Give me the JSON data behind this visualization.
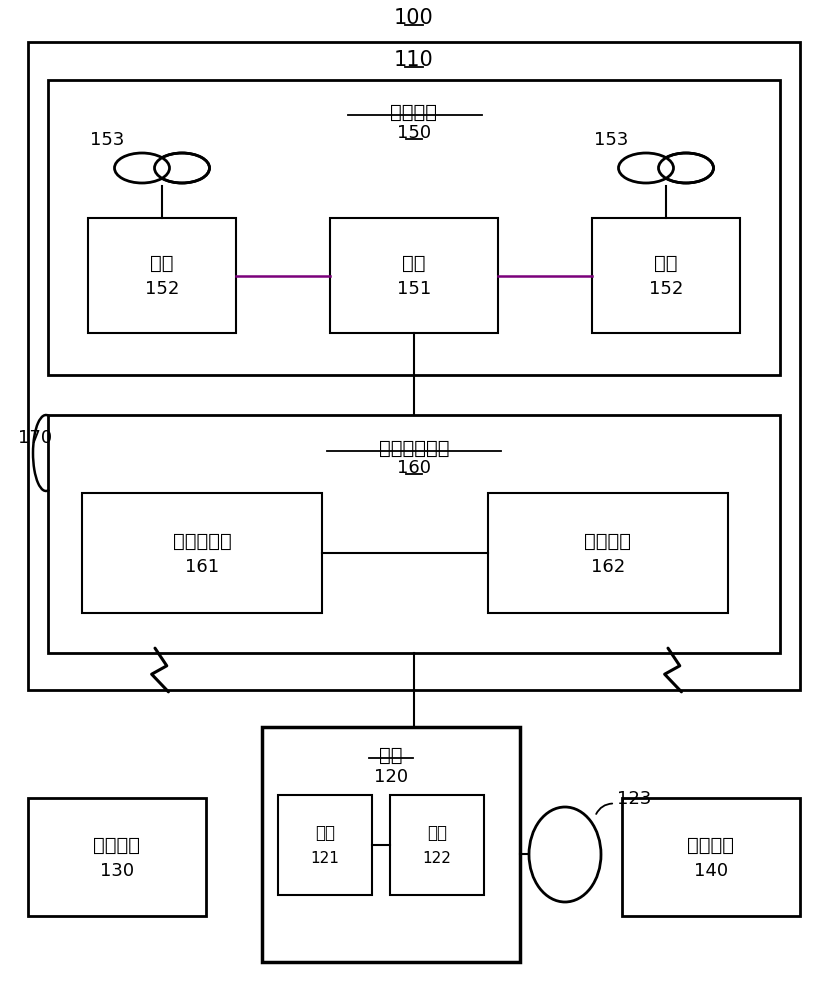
{
  "title_100": "100",
  "title_110": "110",
  "title_150": "150",
  "label_150": "动力系统",
  "title_160": "160",
  "label_160": "飞行控制系统",
  "label_151": "电调",
  "num_151": "151",
  "label_152_l": "电机",
  "num_152_l": "152",
  "label_152_r": "电机",
  "num_152_r": "152",
  "num_153_l": "153",
  "num_153_r": "153",
  "label_161": "飞行控制器",
  "num_161": "161",
  "label_162": "传感系统",
  "num_162": "162",
  "label_120": "云台",
  "num_120": "120",
  "label_121": "电调",
  "num_121": "121",
  "label_122": "电机",
  "num_122": "122",
  "num_123": "123",
  "label_130": "显示设备",
  "num_130": "130",
  "label_140": "操纵设备",
  "num_140": "140",
  "num_170": "170",
  "bg_color": "#ffffff",
  "box_color": "#000000",
  "line_color": "#000000",
  "purple_line": "#7B007B",
  "font_size_label": 14,
  "font_size_num": 13,
  "font_size_title": 15
}
